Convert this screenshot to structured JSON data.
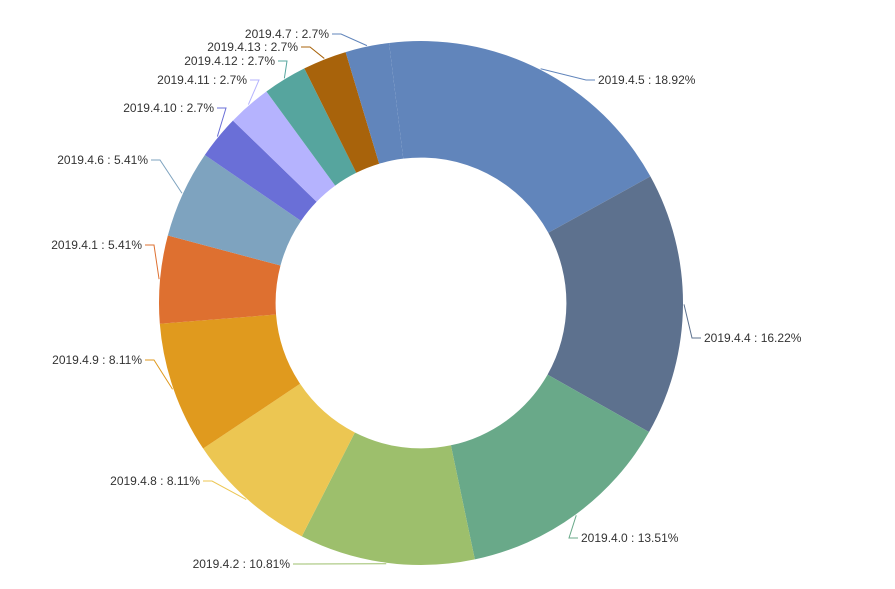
{
  "chart_data": {
    "type": "pie",
    "variant": "donut",
    "title": "",
    "label_format": "{name} : {percent}",
    "slices": [
      {
        "name": "2019.4.5",
        "percent_label": "18.92%",
        "value": 18.92,
        "color": "#6185bb"
      },
      {
        "name": "2019.4.4",
        "percent_label": "16.22%",
        "value": 16.22,
        "color": "#5d718e"
      },
      {
        "name": "2019.4.0",
        "percent_label": "13.51%",
        "value": 13.51,
        "color": "#69a989"
      },
      {
        "name": "2019.4.2",
        "percent_label": "10.81%",
        "value": 10.81,
        "color": "#9dbf6c"
      },
      {
        "name": "2019.4.8",
        "percent_label": "8.11%",
        "value": 8.11,
        "color": "#ecc652"
      },
      {
        "name": "2019.4.9",
        "percent_label": "8.11%",
        "value": 8.11,
        "color": "#e09a1e"
      },
      {
        "name": "2019.4.1",
        "percent_label": "5.41%",
        "value": 5.41,
        "color": "#de7030"
      },
      {
        "name": "2019.4.6",
        "percent_label": "5.41%",
        "value": 5.41,
        "color": "#7ea3bf"
      },
      {
        "name": "2019.4.10",
        "percent_label": "2.7%",
        "value": 2.7,
        "color": "#6a6fd7"
      },
      {
        "name": "2019.4.11",
        "percent_label": "2.7%",
        "value": 2.7,
        "color": "#b5b3fe"
      },
      {
        "name": "2019.4.12",
        "percent_label": "2.7%",
        "value": 2.7,
        "color": "#56a59e"
      },
      {
        "name": "2019.4.13",
        "percent_label": "2.7%",
        "value": 2.7,
        "color": "#a8630b"
      },
      {
        "name": "2019.4.7",
        "percent_label": "2.7%",
        "value": 2.7,
        "color": "#6185bb"
      }
    ],
    "start_angle_deg": -7,
    "direction": "clockwise",
    "inner_radius_ratio": 0.555,
    "legend": "none"
  }
}
